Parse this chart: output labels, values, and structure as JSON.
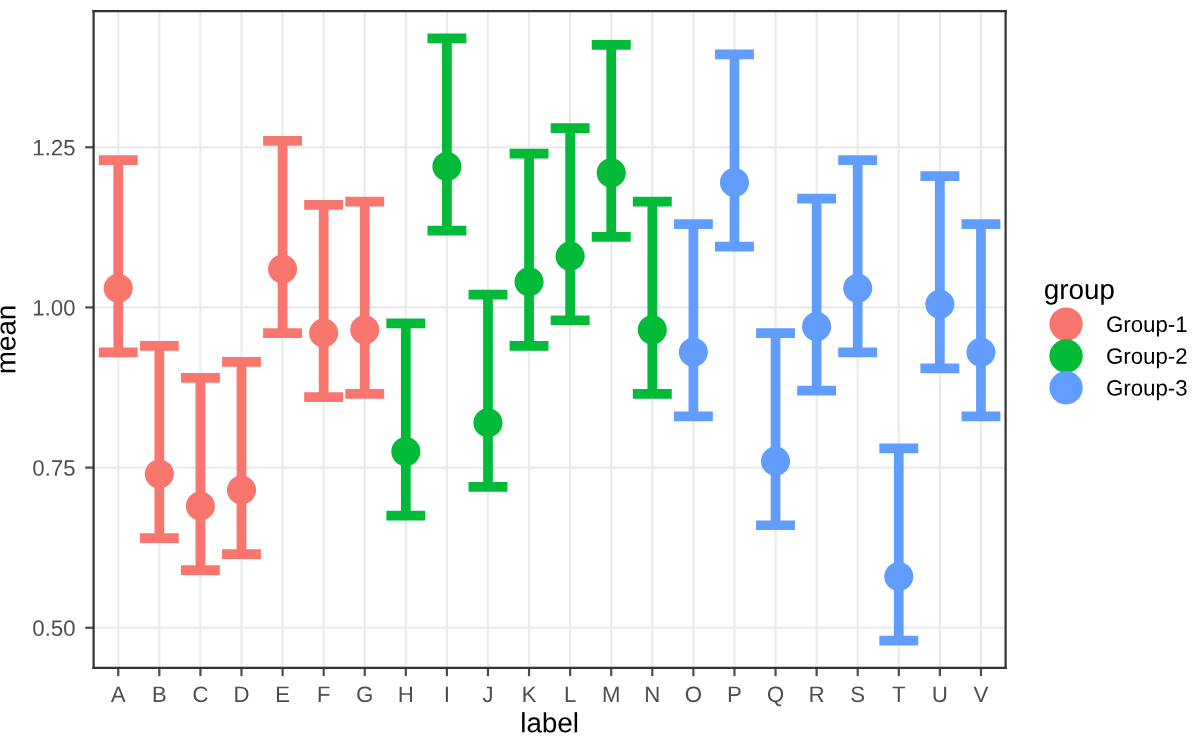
{
  "chart_data": {
    "type": "scatter",
    "xlabel": "label",
    "ylabel": "mean",
    "legend_title": "group",
    "categories": [
      "A",
      "B",
      "C",
      "D",
      "E",
      "F",
      "G",
      "H",
      "I",
      "J",
      "K",
      "L",
      "M",
      "N",
      "O",
      "P",
      "Q",
      "R",
      "S",
      "T",
      "U",
      "V"
    ],
    "series": [
      {
        "name": "Group-1",
        "color": "#f8766d",
        "values": [
          1.03,
          0.74,
          0.69,
          0.715,
          1.06,
          0.96,
          0.965,
          null,
          null,
          null,
          null,
          null,
          null,
          null,
          null,
          null,
          null,
          null,
          null,
          null,
          null,
          null
        ],
        "errors": [
          [
            0.93,
            1.23
          ],
          [
            0.64,
            0.94
          ],
          [
            0.59,
            0.89
          ],
          [
            0.615,
            0.915
          ],
          [
            0.96,
            1.26
          ],
          [
            0.86,
            1.16
          ],
          [
            0.865,
            1.165
          ],
          null,
          null,
          null,
          null,
          null,
          null,
          null,
          null,
          null,
          null,
          null,
          null,
          null,
          null,
          null
        ]
      },
      {
        "name": "Group-2",
        "color": "#00ba38",
        "values": [
          null,
          null,
          null,
          null,
          null,
          null,
          null,
          0.775,
          1.22,
          0.82,
          1.04,
          1.08,
          1.21,
          0.965,
          null,
          null,
          null,
          null,
          null,
          null,
          null,
          null
        ],
        "errors": [
          null,
          null,
          null,
          null,
          null,
          null,
          null,
          [
            0.675,
            0.975
          ],
          [
            1.12,
            1.42
          ],
          [
            0.72,
            1.02
          ],
          [
            0.94,
            1.24
          ],
          [
            0.98,
            1.28
          ],
          [
            1.11,
            1.41
          ],
          [
            0.865,
            1.165
          ],
          null,
          null,
          null,
          null,
          null,
          null,
          null,
          null
        ]
      },
      {
        "name": "Group-3",
        "color": "#619cff",
        "values": [
          null,
          null,
          null,
          null,
          null,
          null,
          null,
          null,
          null,
          null,
          null,
          null,
          null,
          null,
          0.93,
          1.195,
          0.76,
          0.97,
          1.03,
          0.58,
          1.005,
          0.93
        ],
        "errors": [
          null,
          null,
          null,
          null,
          null,
          null,
          null,
          null,
          null,
          null,
          null,
          null,
          null,
          null,
          [
            0.83,
            1.13
          ],
          [
            1.095,
            1.395
          ],
          [
            0.66,
            0.96
          ],
          [
            0.87,
            1.17
          ],
          [
            0.93,
            1.23
          ],
          [
            0.48,
            0.78
          ],
          [
            0.905,
            1.205
          ],
          [
            0.83,
            1.13
          ]
        ]
      }
    ],
    "ylim": [
      0.4375,
      1.4625
    ],
    "yticks": [
      {
        "value": 0.5,
        "label": "0.50"
      },
      {
        "value": 0.75,
        "label": "0.75"
      },
      {
        "value": 1.0,
        "label": "1.00"
      },
      {
        "value": 1.25,
        "label": "1.25"
      }
    ],
    "grid": true,
    "legend": "right",
    "marker": "circle"
  }
}
